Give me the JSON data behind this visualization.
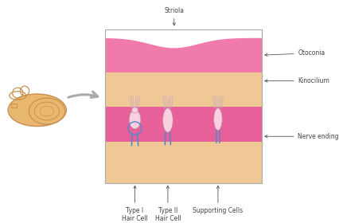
{
  "bg_color": "#ffffff",
  "colors": {
    "otoconia_pink": "#f07aaa",
    "gelatin_tan": "#f0c896",
    "hair_cell_layer_pink": "#e8609a",
    "hair_cell_body": "#f8d0e0",
    "kinocilium": "#c8a8c0",
    "nerve_fiber": "#5888c8",
    "snail_body": "#e8b870",
    "snail_outline": "#c89050",
    "arrow_gray": "#aaaaaa",
    "label_color": "#444444",
    "box_border": "#aaaaaa"
  },
  "labels": {
    "striola": "Striola",
    "otoconia": "Otoconia",
    "kinocilium": "Kinocilium",
    "nerve_ending": "Nerve ending",
    "type1": "Type I\nHair Cell",
    "type2": "Type II\nHair Cell",
    "supporting": "Supporting Cells"
  },
  "font_size": 5.5
}
